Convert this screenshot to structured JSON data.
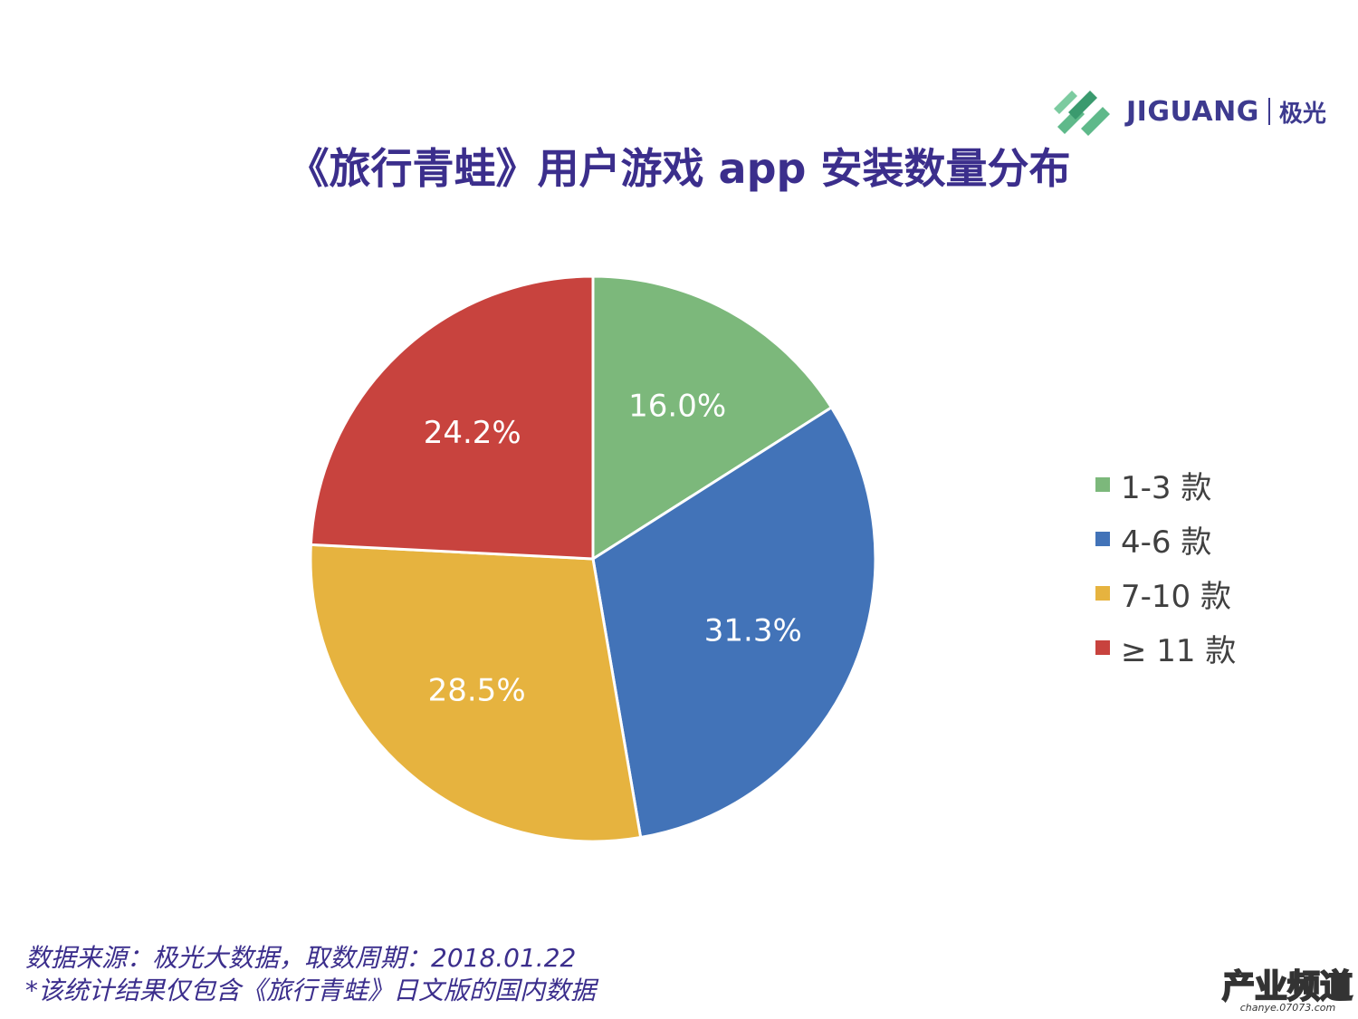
{
  "logo": {
    "word": "JIGUANG",
    "cn": "极光",
    "icon": "jiguang-logo-icon"
  },
  "title": "《旅行青蛙》用户游戏 app 安装数量分布",
  "chart_data": {
    "type": "pie",
    "title": "《旅行青蛙》用户游戏 app 安装数量分布",
    "start_angle": "12 o'clock, clockwise",
    "slices": [
      {
        "label": "1-3 款",
        "value": 16.0,
        "display": "16.0%",
        "color": "#7cb87b"
      },
      {
        "label": "4-6 款",
        "value": 31.3,
        "display": "31.3%",
        "color": "#4273b8"
      },
      {
        "label": "7-10 款",
        "value": 28.5,
        "display": "28.5%",
        "color": "#e6b33f"
      },
      {
        "label": "≥ 11 款",
        "value": 24.2,
        "display": "24.2%",
        "color": "#c8433e"
      }
    ],
    "legend_position": "right"
  },
  "source": {
    "line1": "数据来源：极光大数据，取数周期：2018.01.22",
    "line2": "*该统计结果仅包含《旅行青蛙》日文版的国内数据"
  },
  "watermark": {
    "text": "产业频道",
    "url": "chanye.07073.com"
  }
}
